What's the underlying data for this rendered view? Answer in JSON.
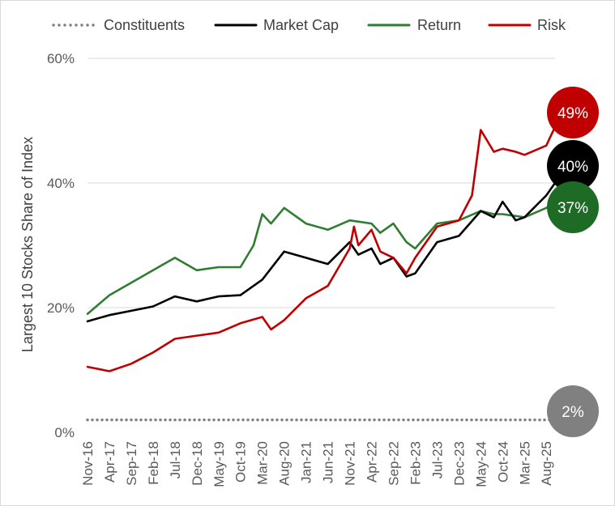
{
  "chart_data": {
    "type": "line",
    "ylabel": "Largest 10 Stocks Share of Index",
    "ylim": [
      0,
      60
    ],
    "y_ticks": [
      "0%",
      "20%",
      "40%",
      "60%"
    ],
    "y_tick_values": [
      0,
      20,
      40,
      60
    ],
    "grid": true,
    "legend_position": "top",
    "x_range": [
      "Nov-16",
      "Oct-25"
    ],
    "x_tick_labels": [
      "Nov-16",
      "Apr-17",
      "Sep-17",
      "Feb-18",
      "Jul-18",
      "Dec-18",
      "May-19",
      "Oct-19",
      "Mar-20",
      "Aug-20",
      "Jan-21",
      "Jun-21",
      "Nov-21",
      "Apr-22",
      "Sep-22",
      "Feb-23",
      "Jul-23",
      "Dec-23",
      "May-24",
      "Oct-24",
      "Mar-25",
      "Aug-25"
    ],
    "series": [
      {
        "name": "Constituents",
        "color": "#808080",
        "style": "dotted",
        "end_label": "2%",
        "points": [
          [
            "Nov-16",
            2.0
          ],
          [
            "Oct-25",
            2.0
          ]
        ]
      },
      {
        "name": "Market Cap",
        "color": "#000000",
        "style": "solid",
        "end_label": "40%",
        "points": [
          [
            "Nov-16",
            17.8
          ],
          [
            "Apr-17",
            18.8
          ],
          [
            "Sep-17",
            19.5
          ],
          [
            "Feb-18",
            20.2
          ],
          [
            "Jul-18",
            21.8
          ],
          [
            "Dec-18",
            21.0
          ],
          [
            "May-19",
            21.8
          ],
          [
            "Oct-19",
            22.0
          ],
          [
            "Mar-20",
            24.5
          ],
          [
            "Aug-20",
            29.0
          ],
          [
            "Jan-21",
            28.0
          ],
          [
            "Jun-21",
            27.0
          ],
          [
            "Nov-21",
            30.5
          ],
          [
            "Jan-22",
            28.5
          ],
          [
            "Apr-22",
            29.5
          ],
          [
            "Jun-22",
            27.0
          ],
          [
            "Sep-22",
            28.0
          ],
          [
            "Dec-22",
            25.0
          ],
          [
            "Feb-23",
            25.5
          ],
          [
            "Jul-23",
            30.5
          ],
          [
            "Dec-23",
            31.5
          ],
          [
            "May-24",
            35.5
          ],
          [
            "Aug-24",
            34.5
          ],
          [
            "Oct-24",
            37.0
          ],
          [
            "Jan-25",
            34.0
          ],
          [
            "Mar-25",
            34.5
          ],
          [
            "Aug-25",
            38.0
          ],
          [
            "Oct-25",
            40.0
          ]
        ]
      },
      {
        "name": "Return",
        "color": "#2e7d32",
        "style": "solid",
        "end_label": "37%",
        "points": [
          [
            "Nov-16",
            19.0
          ],
          [
            "Apr-17",
            22.0
          ],
          [
            "Sep-17",
            24.0
          ],
          [
            "Feb-18",
            26.0
          ],
          [
            "Jul-18",
            28.0
          ],
          [
            "Dec-18",
            26.0
          ],
          [
            "May-19",
            26.5
          ],
          [
            "Oct-19",
            26.5
          ],
          [
            "Jan-20",
            30.0
          ],
          [
            "Mar-20",
            35.0
          ],
          [
            "May-20",
            33.5
          ],
          [
            "Aug-20",
            36.0
          ],
          [
            "Jan-21",
            33.5
          ],
          [
            "Jun-21",
            32.5
          ],
          [
            "Nov-21",
            34.0
          ],
          [
            "Apr-22",
            33.5
          ],
          [
            "Jun-22",
            32.0
          ],
          [
            "Sep-22",
            33.5
          ],
          [
            "Dec-22",
            30.5
          ],
          [
            "Feb-23",
            29.5
          ],
          [
            "Jul-23",
            33.5
          ],
          [
            "Dec-23",
            34.0
          ],
          [
            "May-24",
            35.5
          ],
          [
            "Aug-24",
            35.0
          ],
          [
            "Oct-24",
            35.0
          ],
          [
            "Mar-25",
            34.5
          ],
          [
            "Aug-25",
            36.0
          ],
          [
            "Oct-25",
            37.0
          ]
        ]
      },
      {
        "name": "Risk",
        "color": "#c00000",
        "style": "solid",
        "end_label": "49%",
        "points": [
          [
            "Nov-16",
            10.5
          ],
          [
            "Apr-17",
            9.8
          ],
          [
            "Sep-17",
            11.0
          ],
          [
            "Feb-18",
            12.8
          ],
          [
            "Jul-18",
            15.0
          ],
          [
            "Dec-18",
            15.5
          ],
          [
            "May-19",
            16.0
          ],
          [
            "Oct-19",
            17.5
          ],
          [
            "Mar-20",
            18.5
          ],
          [
            "May-20",
            16.5
          ],
          [
            "Aug-20",
            18.0
          ],
          [
            "Jan-21",
            21.5
          ],
          [
            "Jun-21",
            23.5
          ],
          [
            "Nov-21",
            29.5
          ],
          [
            "Dec-21",
            33.0
          ],
          [
            "Jan-22",
            30.0
          ],
          [
            "Apr-22",
            32.5
          ],
          [
            "Jun-22",
            29.0
          ],
          [
            "Sep-22",
            28.0
          ],
          [
            "Dec-22",
            25.5
          ],
          [
            "Feb-23",
            28.0
          ],
          [
            "Jul-23",
            33.0
          ],
          [
            "Dec-23",
            34.0
          ],
          [
            "Mar-24",
            38.0
          ],
          [
            "May-24",
            48.5
          ],
          [
            "Aug-24",
            45.0
          ],
          [
            "Oct-24",
            45.5
          ],
          [
            "Jan-25",
            45.0
          ],
          [
            "Mar-25",
            44.5
          ],
          [
            "Aug-25",
            46.0
          ],
          [
            "Oct-25",
            49.0
          ]
        ]
      }
    ]
  }
}
